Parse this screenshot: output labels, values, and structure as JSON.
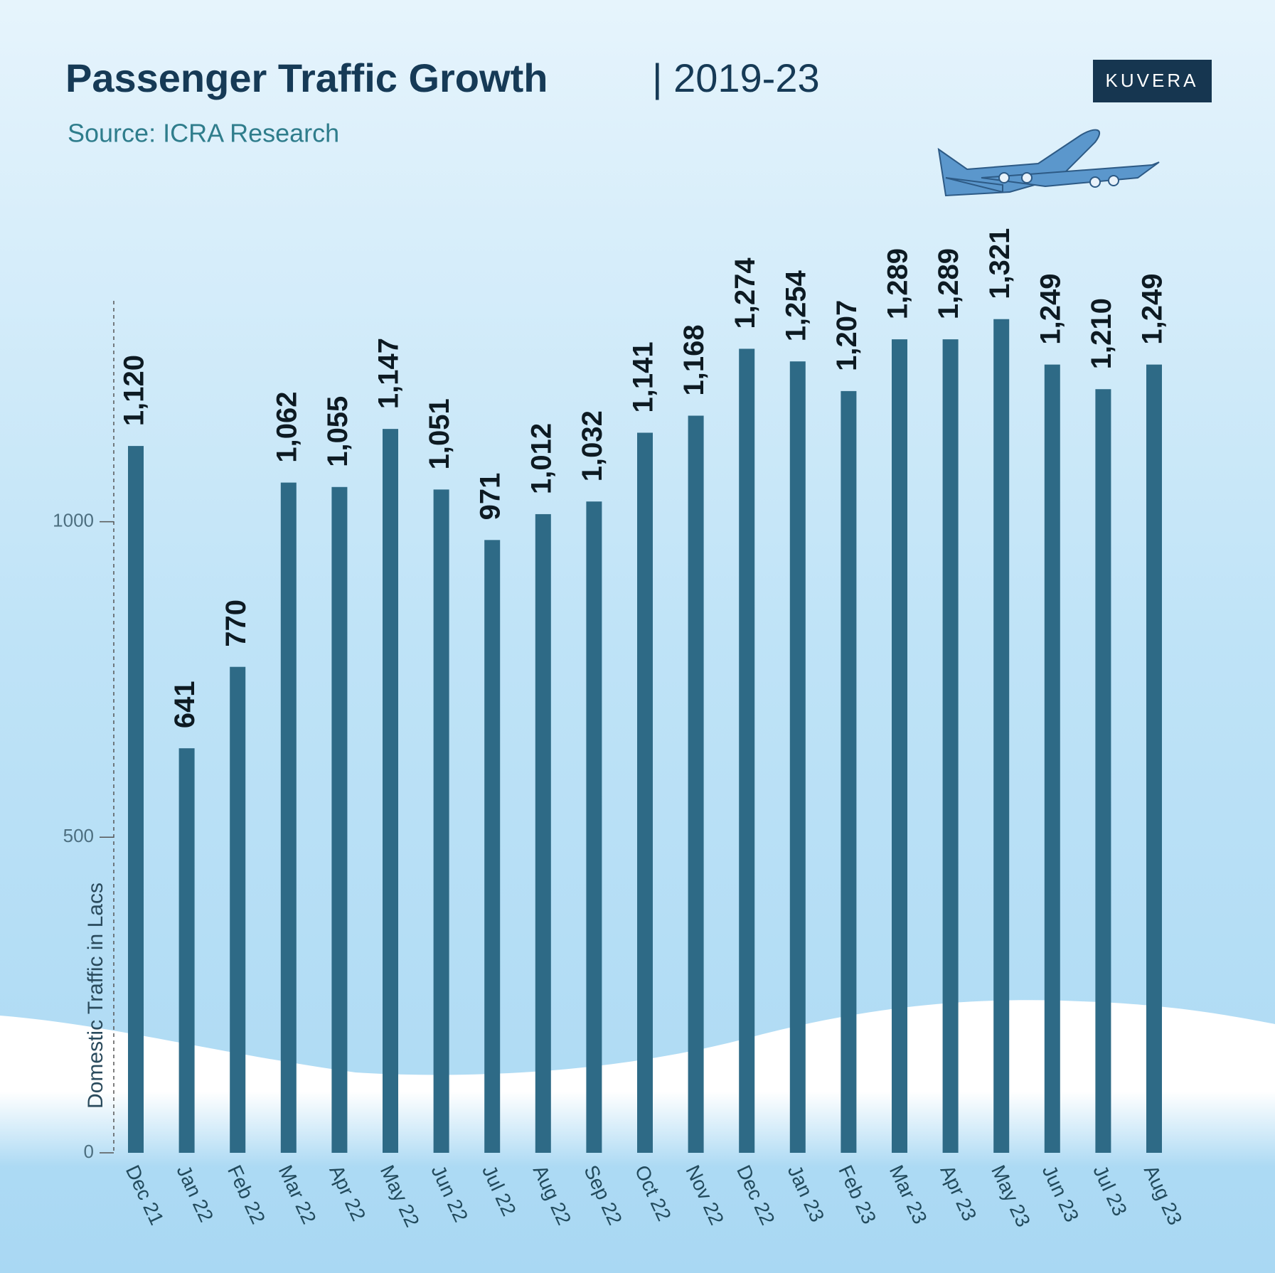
{
  "chart_data": {
    "type": "bar",
    "title": "Passenger Traffic Growth",
    "title_suffix": "| 2019-23",
    "subtitle": "Source: ICRA Research",
    "logo": "KUVERA",
    "y_label": "Domestic Traffic in Lacs",
    "categories": [
      "Dec 21",
      "Jan 22",
      "Feb 22",
      "Mar 22",
      "Apr 22",
      "May 22",
      "Jun 22",
      "Jul 22",
      "Aug 22",
      "Sep 22",
      "Oct 22",
      "Nov 22",
      "Dec 22",
      "Jan 23",
      "Feb 23",
      "Mar 23",
      "Apr 23",
      "May 23",
      "Jun 23",
      "Jul 23",
      "Aug 23"
    ],
    "values": [
      1120,
      641,
      770,
      1062,
      1055,
      1147,
      1051,
      971,
      1012,
      1032,
      1141,
      1168,
      1274,
      1254,
      1207,
      1289,
      1289,
      1321,
      1249,
      1210,
      1249
    ],
    "value_labels": [
      "1,120",
      "641",
      "770",
      "1,062",
      "1,055",
      "1,147",
      "1,051",
      "971",
      "1,012",
      "1,032",
      "1,141",
      "1,168",
      "1,274",
      "1,254",
      "1,207",
      "1,289",
      "1,289",
      "1,321",
      "1,249",
      "1,210",
      "1,249"
    ],
    "color": "#2e6a86",
    "ylim": [
      0,
      1350
    ],
    "yticks": [
      0,
      500,
      1000
    ]
  }
}
